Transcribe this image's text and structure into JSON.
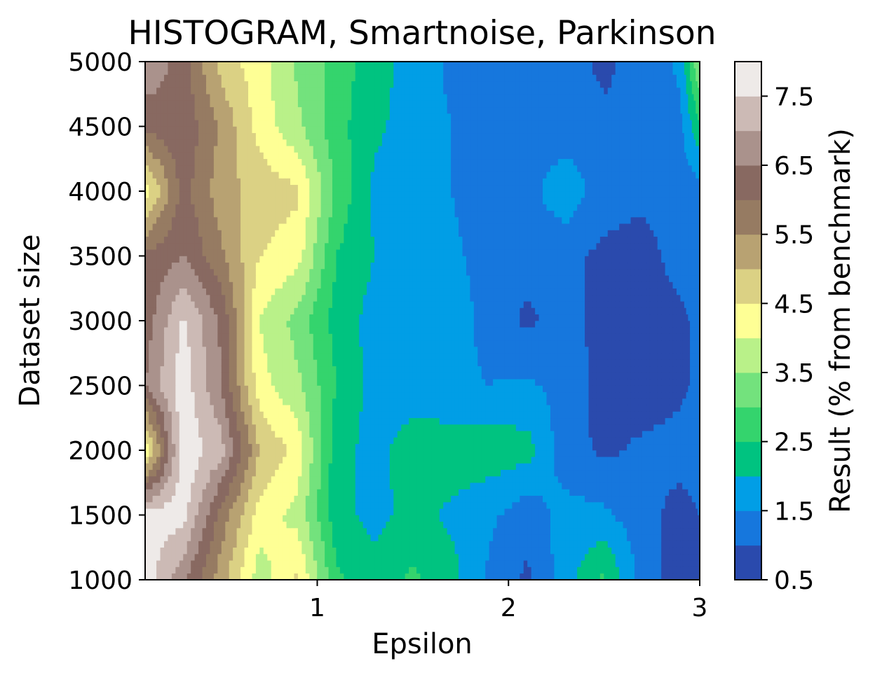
{
  "chart_data": {
    "type": "heatmap",
    "subtype": "filled-contour",
    "title": "HISTOGRAM, Smartnoise, Parkinson",
    "xlabel": "Epsilon",
    "ylabel": "Dataset size",
    "colorbar_label": "Result (% from benchmark)",
    "xlim": [
      0.1,
      3.0
    ],
    "ylim": [
      1000,
      5000
    ],
    "xticks": [
      1,
      2,
      3
    ],
    "xtick_labels": [
      "1",
      "2",
      "3"
    ],
    "yticks": [
      1000,
      1500,
      2000,
      2500,
      3000,
      3500,
      4000,
      4500,
      5000
    ],
    "ytick_labels": [
      "1000",
      "1500",
      "2000",
      "2500",
      "3000",
      "3500",
      "4000",
      "4500",
      "5000"
    ],
    "colorbar_ticks": [
      0.5,
      1.5,
      2.5,
      3.5,
      4.5,
      5.5,
      6.5,
      7.5
    ],
    "colorbar_tick_labels": [
      "0.5",
      "1.5",
      "2.5",
      "3.5",
      "4.5",
      "5.5",
      "6.5",
      "7.5"
    ],
    "levels": [
      0.5,
      1.0,
      1.5,
      2.0,
      2.5,
      3.0,
      3.5,
      4.0,
      4.5,
      5.0,
      5.5,
      6.0,
      6.5,
      7.0,
      7.5,
      8.0
    ],
    "colormap": "terrain",
    "level_colors": [
      "#2a4aad",
      "#1677dd",
      "#019ee6",
      "#00c380",
      "#34d46d",
      "#73e27d",
      "#b9f189",
      "#feff95",
      "#dbd184",
      "#b8a272",
      "#967b62",
      "#886961",
      "#aa928c",
      "#ccbab5",
      "#eeeae8"
    ],
    "x": [
      0.1,
      0.3,
      0.5,
      0.7,
      0.9,
      1.1,
      1.3,
      1.5,
      1.7,
      1.9,
      2.1,
      2.3,
      2.5,
      2.7,
      2.9,
      3.0
    ],
    "y": [
      1000,
      1500,
      2000,
      2500,
      3000,
      3500,
      4000,
      4500,
      5000
    ],
    "z": [
      [
        7.8,
        6.6,
        5.2,
        3.7,
        4.6,
        2.6,
        2.2,
        2.6,
        2.2,
        1.4,
        0.9,
        1.8,
        2.6,
        1.3,
        0.7,
        0.9
      ],
      [
        7.8,
        7.7,
        5.8,
        4.3,
        3.8,
        2.2,
        1.8,
        2.2,
        1.9,
        1.6,
        1.2,
        1.7,
        1.6,
        1.2,
        0.8,
        1.0
      ],
      [
        4.0,
        7.9,
        7.2,
        5.0,
        4.3,
        2.2,
        1.8,
        2.3,
        2.3,
        2.3,
        2.2,
        1.2,
        0.9,
        1.1,
        1.2,
        1.3
      ],
      [
        6.5,
        7.8,
        6.5,
        4.2,
        3.6,
        2.5,
        1.8,
        1.7,
        1.6,
        1.5,
        1.6,
        1.3,
        0.8,
        0.7,
        0.9,
        1.1
      ],
      [
        6.2,
        7.6,
        6.4,
        4.0,
        3.3,
        2.3,
        1.8,
        1.7,
        1.8,
        1.3,
        0.9,
        1.2,
        0.8,
        0.7,
        0.9,
        1.1
      ],
      [
        6.1,
        6.5,
        5.6,
        4.5,
        4.2,
        2.5,
        2.0,
        1.7,
        1.6,
        1.3,
        1.2,
        1.1,
        0.9,
        0.8,
        1.2,
        1.2
      ],
      [
        4.2,
        6.2,
        5.2,
        4.8,
        4.6,
        2.9,
        1.9,
        1.6,
        1.5,
        1.2,
        1.3,
        1.9,
        1.2,
        1.1,
        1.2,
        1.3
      ],
      [
        6.1,
        6.4,
        5.4,
        4.3,
        3.6,
        2.7,
        2.1,
        1.8,
        1.5,
        1.3,
        1.1,
        1.2,
        1.1,
        1.1,
        1.4,
        2.4
      ],
      [
        7.0,
        6.2,
        4.8,
        4.2,
        3.4,
        2.8,
        2.2,
        1.8,
        1.4,
        1.1,
        1.1,
        1.2,
        0.9,
        1.2,
        1.6,
        3.6
      ]
    ]
  }
}
